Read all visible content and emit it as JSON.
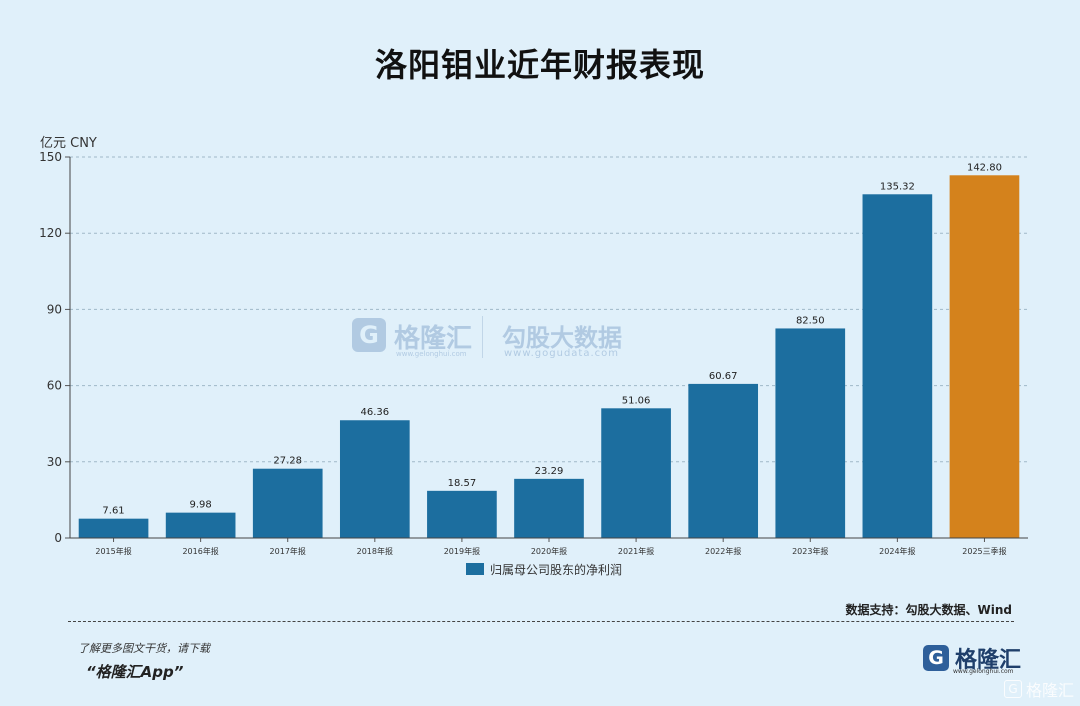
{
  "header": {
    "title": "洛阳钼业近年财报表现"
  },
  "unit_label": "亿元  CNY",
  "watermark": {
    "name": "格隆汇",
    "site": "www.gelonghui.com",
    "name2": "勾股大数据",
    "site2": "www.gogudata.com",
    "logo_letter": "G"
  },
  "legend": {
    "label": "归属母公司股东的净利润"
  },
  "source": "数据支持：勾股大数据、Wind",
  "promo": {
    "line1": "了解更多图文干货，请下载",
    "line2": "“格隆汇App”"
  },
  "brand": {
    "name": "格隆汇",
    "site": "www.gelonghui.com",
    "logo_letter": "G"
  },
  "corner_watermark": {
    "name": "格隆汇",
    "logo_letter": "G"
  },
  "colors": {
    "bar": "#1c6e9f",
    "highlight": "#d4821c",
    "background": "#e0f0fa"
  },
  "chart_data": {
    "type": "bar",
    "categories": [
      "2015年报",
      "2016年报",
      "2017年报",
      "2018年报",
      "2019年报",
      "2020年报",
      "2021年报",
      "2022年报",
      "2023年报",
      "2024年报",
      "2025三季报"
    ],
    "values": [
      7.61,
      9.98,
      27.28,
      46.36,
      18.57,
      23.29,
      51.06,
      60.67,
      82.5,
      135.32,
      142.8
    ],
    "value_labels": [
      "7.61",
      "9.98",
      "27.28",
      "46.36",
      "18.57",
      "23.29",
      "51.06",
      "60.67",
      "82.50",
      "135.32",
      "142.80"
    ],
    "highlight_index": 10,
    "ylim": [
      0,
      150
    ],
    "yticks": [
      0,
      30,
      60,
      90,
      120,
      150
    ],
    "ylabel": "亿元  CNY",
    "xlabel": "",
    "grid": true,
    "legend_position": "bottom-center",
    "series": [
      {
        "name": "归属母公司股东的净利润"
      }
    ]
  }
}
